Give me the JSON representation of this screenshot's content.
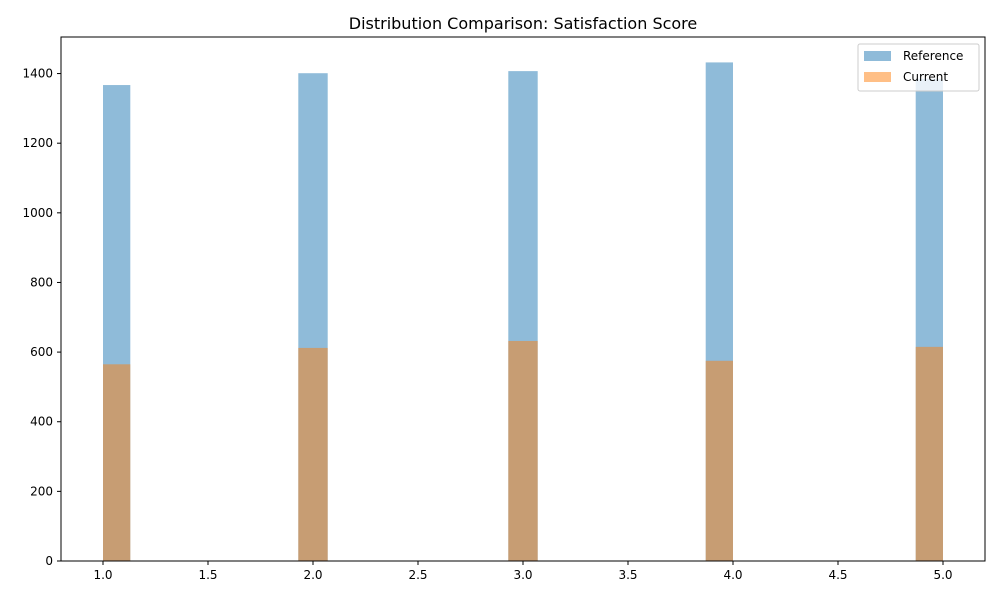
{
  "chart_data": {
    "type": "bar",
    "title": "Distribution Comparison: Satisfaction Score",
    "xlabel": "",
    "ylabel": "",
    "xlim": [
      0.8,
      5.2
    ],
    "ylim": [
      0,
      1505
    ],
    "grid": false,
    "legend_position": "top-right",
    "x_ticks": [
      1.0,
      1.5,
      2.0,
      2.5,
      3.0,
      3.5,
      4.0,
      4.5,
      5.0
    ],
    "x_tick_labels": [
      "1.0",
      "1.5",
      "2.0",
      "2.5",
      "3.0",
      "3.5",
      "4.0",
      "4.5",
      "5.0"
    ],
    "y_ticks": [
      0,
      200,
      400,
      600,
      800,
      1000,
      1200,
      1400
    ],
    "y_tick_labels": [
      "0",
      "200",
      "400",
      "600",
      "800",
      "1000",
      "1200",
      "1400"
    ],
    "series": [
      {
        "name": "Reference",
        "color": "#1f77b4",
        "alpha": 0.5,
        "bins": [
          {
            "x0": 1.0,
            "x1": 1.13,
            "value": 1367
          },
          {
            "x0": 1.93,
            "x1": 2.07,
            "value": 1401
          },
          {
            "x0": 2.93,
            "x1": 3.07,
            "value": 1407
          },
          {
            "x0": 3.87,
            "x1": 4.0,
            "value": 1432
          },
          {
            "x0": 4.87,
            "x1": 5.0,
            "value": 1385
          }
        ]
      },
      {
        "name": "Current",
        "color": "#ff7f0e",
        "alpha": 0.5,
        "bins": [
          {
            "x0": 1.0,
            "x1": 1.13,
            "value": 565
          },
          {
            "x0": 1.93,
            "x1": 2.07,
            "value": 612
          },
          {
            "x0": 2.93,
            "x1": 3.07,
            "value": 632
          },
          {
            "x0": 3.87,
            "x1": 4.0,
            "value": 575
          },
          {
            "x0": 4.87,
            "x1": 5.0,
            "value": 615
          }
        ]
      }
    ]
  }
}
